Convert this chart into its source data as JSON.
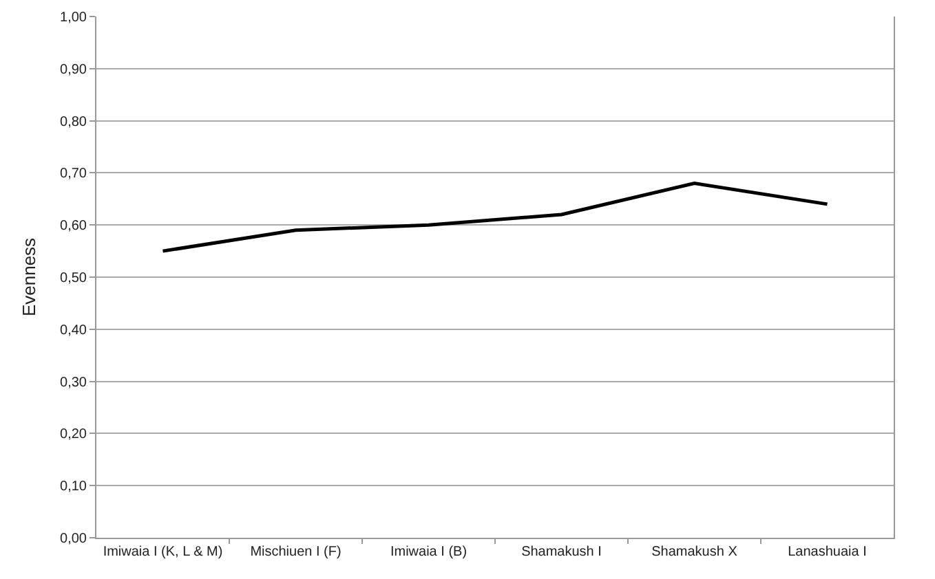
{
  "chart_data": {
    "type": "line",
    "ylabel": "Evenness",
    "categories": [
      "Imiwaia I (K, L & M)",
      "Mischiuen I (F)",
      "Imiwaia I (B)",
      "Shamakush I",
      "Shamakush X",
      "Lanashuaia I"
    ],
    "series": [
      {
        "color": "#000000",
        "values": [
          0.55,
          0.59,
          0.6,
          0.62,
          0.68,
          0.64
        ]
      }
    ],
    "ylim": [
      0,
      1
    ],
    "yticks": [
      {
        "value": 0,
        "label": "0,00"
      },
      {
        "value": 0.1,
        "label": "0,10"
      },
      {
        "value": 0.2,
        "label": "0,20"
      },
      {
        "value": 0.3,
        "label": "0,30"
      },
      {
        "value": 0.4,
        "label": "0,40"
      },
      {
        "value": 0.5,
        "label": "0,50"
      },
      {
        "value": 0.6,
        "label": "0,60"
      },
      {
        "value": 0.7,
        "label": "0,70"
      },
      {
        "value": 0.8,
        "label": "0,80"
      },
      {
        "value": 0.9,
        "label": "0,90"
      },
      {
        "value": 1,
        "label": "1,00"
      }
    ],
    "grid": "y",
    "marker": "none",
    "line_style": "solid"
  }
}
